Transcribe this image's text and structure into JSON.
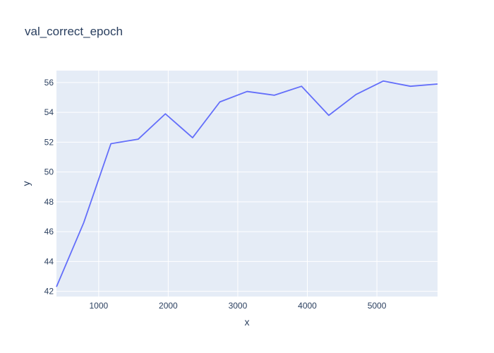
{
  "chart_data": {
    "type": "line",
    "title": "val_correct_epoch",
    "xlabel": "x",
    "ylabel": "y",
    "xlim": [
      393,
      5872
    ],
    "ylim": [
      41.65,
      56.8
    ],
    "grid": true,
    "x_ticks": [
      1000,
      2000,
      3000,
      4000,
      5000
    ],
    "y_ticks": [
      42,
      44,
      46,
      48,
      50,
      52,
      54,
      56
    ],
    "line_color": "#636efa",
    "plot_background": "#e5ecf6",
    "series": [
      {
        "x": [
          393,
          785,
          1176,
          1568,
          1959,
          2350,
          2742,
          3134,
          3525,
          3917,
          4308,
          4700,
          5091,
          5482,
          5872
        ],
        "y": [
          42.3,
          46.6,
          51.9,
          52.2,
          53.9,
          52.3,
          54.7,
          55.4,
          55.15,
          55.75,
          53.8,
          55.2,
          56.1,
          55.75,
          55.9
        ]
      }
    ]
  }
}
